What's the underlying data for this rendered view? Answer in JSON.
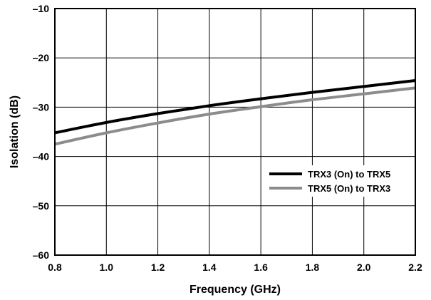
{
  "chart_data": {
    "type": "line",
    "title": "",
    "xlabel": "Frequency (GHz)",
    "ylabel": "Isolation (dB)",
    "xlim": [
      0.8,
      2.2
    ],
    "ylim": [
      -60,
      -10
    ],
    "xticks": [
      0.8,
      1.0,
      1.2,
      1.4,
      1.6,
      1.8,
      2.0,
      2.2
    ],
    "xtick_labels": [
      "0.8",
      "1.0",
      "1.2",
      "1.4",
      "1.6",
      "1.8",
      "2.0",
      "2.2"
    ],
    "yticks": [
      -10,
      -20,
      -30,
      -40,
      -50,
      -60
    ],
    "ytick_labels": [
      "–10",
      "–20",
      "–30",
      "–40",
      "–50",
      "–60"
    ],
    "grid": true,
    "legend_position": "right",
    "series": [
      {
        "name": "TRX3 (On) to TRX5",
        "color": "#000000",
        "x": [
          0.8,
          1.0,
          1.2,
          1.4,
          1.6,
          1.8,
          2.0,
          2.2
        ],
        "y": [
          -35.2,
          -33.1,
          -31.3,
          -29.7,
          -28.3,
          -27.0,
          -25.8,
          -24.6
        ]
      },
      {
        "name": "TRX5 (On) to TRX3",
        "color": "#8c8c8c",
        "x": [
          0.8,
          1.0,
          1.2,
          1.4,
          1.6,
          1.8,
          2.0,
          2.2
        ],
        "y": [
          -37.5,
          -35.2,
          -33.2,
          -31.4,
          -29.9,
          -28.5,
          -27.3,
          -26.1
        ]
      }
    ]
  }
}
